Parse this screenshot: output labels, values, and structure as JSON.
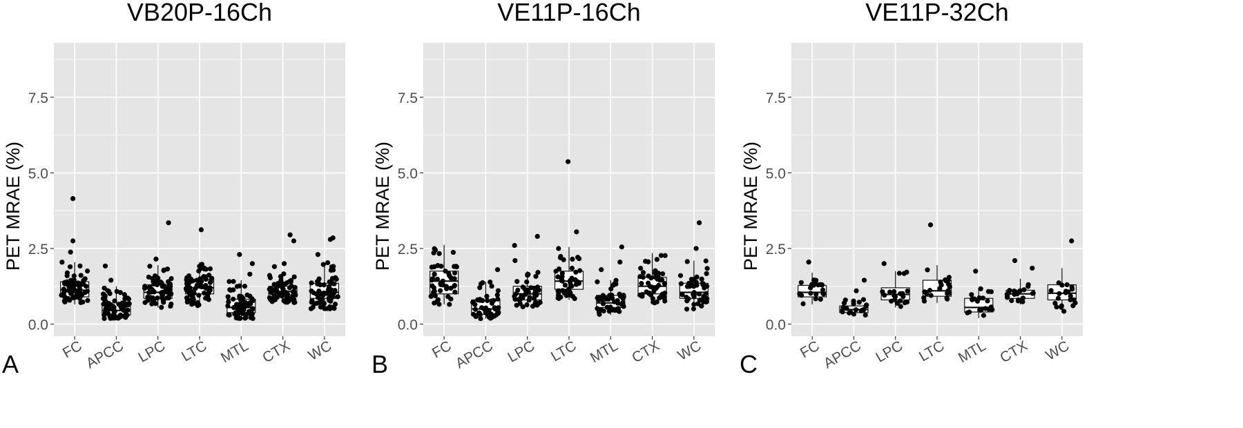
{
  "chart_data": [
    {
      "type": "box",
      "panel_label": "A",
      "title": "VB20P-16Ch",
      "ylabel": "PET MRAE (%)",
      "xlabel": "",
      "ylim": [
        -0.4,
        9.3
      ],
      "yticks": [
        0.0,
        2.5,
        5.0,
        7.5
      ],
      "ytick_labels": [
        "0.0",
        "2.5",
        "5.0",
        "7.5"
      ],
      "grid": true,
      "categories": [
        "FC",
        "APCC",
        "LPC",
        "LTC",
        "MTL",
        "CTX",
        "WC"
      ],
      "boxes": [
        {
          "q1": 0.9,
          "median": 1.12,
          "q3": 1.4,
          "whisker_low": 0.65,
          "whisker_high": 2.05,
          "n": 70,
          "outliers": [
            2.38,
            2.75,
            4.15
          ]
        },
        {
          "q1": 0.3,
          "median": 0.45,
          "q3": 0.7,
          "whisker_low": 0.18,
          "whisker_high": 1.25,
          "n": 70,
          "outliers": [
            1.45,
            1.92
          ]
        },
        {
          "q1": 0.85,
          "median": 1.05,
          "q3": 1.3,
          "whisker_low": 0.55,
          "whisker_high": 1.95,
          "n": 70,
          "outliers": [
            2.15,
            3.35
          ]
        },
        {
          "q1": 1.0,
          "median": 1.2,
          "q3": 1.48,
          "whisker_low": 0.6,
          "whisker_high": 2.05,
          "n": 70,
          "outliers": [
            3.12
          ]
        },
        {
          "q1": 0.38,
          "median": 0.55,
          "q3": 0.82,
          "whisker_low": 0.18,
          "whisker_high": 1.45,
          "n": 70,
          "outliers": [
            1.65,
            2.0,
            2.3
          ]
        },
        {
          "q1": 0.9,
          "median": 1.08,
          "q3": 1.25,
          "whisker_low": 0.7,
          "whisker_high": 1.7,
          "n": 70,
          "outliers": [
            1.9,
            2.0,
            2.75,
            2.95
          ]
        },
        {
          "q1": 0.85,
          "median": 1.05,
          "q3": 1.35,
          "whisker_low": 0.5,
          "whisker_high": 2.05,
          "n": 70,
          "outliers": [
            2.3,
            2.8,
            2.85
          ]
        }
      ]
    },
    {
      "type": "box",
      "panel_label": "B",
      "title": "VE11P-16Ch",
      "ylabel": "PET MRAE (%)",
      "xlabel": "",
      "ylim": [
        -0.4,
        9.3
      ],
      "yticks": [
        0.0,
        2.5,
        5.0,
        7.5
      ],
      "ytick_labels": [
        "0.0",
        "2.5",
        "5.0",
        "7.5"
      ],
      "grid": true,
      "categories": [
        "FC",
        "APCC",
        "LPC",
        "LTC",
        "MTL",
        "CTX",
        "WC"
      ],
      "boxes": [
        {
          "q1": 1.0,
          "median": 1.42,
          "q3": 1.75,
          "whisker_low": 0.65,
          "whisker_high": 2.62,
          "n": 50,
          "outliers": []
        },
        {
          "q1": 0.32,
          "median": 0.5,
          "q3": 0.8,
          "whisker_low": 0.18,
          "whisker_high": 1.4,
          "n": 50,
          "outliers": [
            1.8
          ]
        },
        {
          "q1": 0.8,
          "median": 1.0,
          "q3": 1.25,
          "whisker_low": 0.55,
          "whisker_high": 1.75,
          "n": 50,
          "outliers": [
            2.1,
            2.6,
            2.9
          ]
        },
        {
          "q1": 1.15,
          "median": 1.42,
          "q3": 1.75,
          "whisker_low": 0.8,
          "whisker_high": 2.55,
          "n": 50,
          "outliers": [
            3.05,
            5.37
          ]
        },
        {
          "q1": 0.55,
          "median": 0.7,
          "q3": 0.95,
          "whisker_low": 0.3,
          "whisker_high": 1.45,
          "n": 50,
          "outliers": [
            1.8,
            2.05,
            2.55
          ]
        },
        {
          "q1": 1.0,
          "median": 1.25,
          "q3": 1.55,
          "whisker_low": 0.7,
          "whisker_high": 2.35,
          "n": 50,
          "outliers": []
        },
        {
          "q1": 0.85,
          "median": 1.05,
          "q3": 1.35,
          "whisker_low": 0.45,
          "whisker_high": 2.1,
          "n": 50,
          "outliers": [
            2.5,
            3.35
          ]
        }
      ]
    },
    {
      "type": "box",
      "panel_label": "C",
      "title": "VE11P-32Ch",
      "ylabel": "PET MRAE (%)",
      "xlabel": "",
      "ylim": [
        -0.4,
        9.3
      ],
      "yticks": [
        0.0,
        2.5,
        5.0,
        7.5
      ],
      "ytick_labels": [
        "0.0",
        "2.5",
        "5.0",
        "7.5"
      ],
      "grid": true,
      "categories": [
        "FC",
        "APCC",
        "LPC",
        "LTC",
        "MTL",
        "CTX",
        "WC"
      ],
      "boxes": [
        {
          "q1": 0.9,
          "median": 1.05,
          "q3": 1.28,
          "whisker_low": 0.65,
          "whisker_high": 1.7,
          "n": 22,
          "outliers": [
            2.05
          ]
        },
        {
          "q1": 0.38,
          "median": 0.48,
          "q3": 0.6,
          "whisker_low": 0.25,
          "whisker_high": 0.85,
          "n": 22,
          "outliers": [
            1.1,
            1.45
          ]
        },
        {
          "q1": 0.8,
          "median": 0.98,
          "q3": 1.2,
          "whisker_low": 0.55,
          "whisker_high": 1.75,
          "n": 22,
          "outliers": [
            2.0
          ]
        },
        {
          "q1": 0.92,
          "median": 1.1,
          "q3": 1.45,
          "whisker_low": 0.7,
          "whisker_high": 1.95,
          "n": 22,
          "outliers": [
            3.28
          ]
        },
        {
          "q1": 0.4,
          "median": 0.55,
          "q3": 0.85,
          "whisker_low": 0.2,
          "whisker_high": 1.2,
          "n": 22,
          "outliers": [
            1.75
          ]
        },
        {
          "q1": 0.85,
          "median": 1.0,
          "q3": 1.12,
          "whisker_low": 0.65,
          "whisker_high": 1.5,
          "n": 22,
          "outliers": [
            1.85,
            2.1
          ]
        },
        {
          "q1": 0.8,
          "median": 1.02,
          "q3": 1.3,
          "whisker_low": 0.4,
          "whisker_high": 1.85,
          "n": 22,
          "outliers": [
            2.75
          ]
        }
      ]
    }
  ],
  "colors": {
    "panel_background": "#e5e5e5",
    "gridline": "#ffffff",
    "box_fill": "#ffffff",
    "box_stroke": "#111111",
    "point": "#000000",
    "axis_text": "#4d4d4d",
    "title_text": "#000000"
  }
}
